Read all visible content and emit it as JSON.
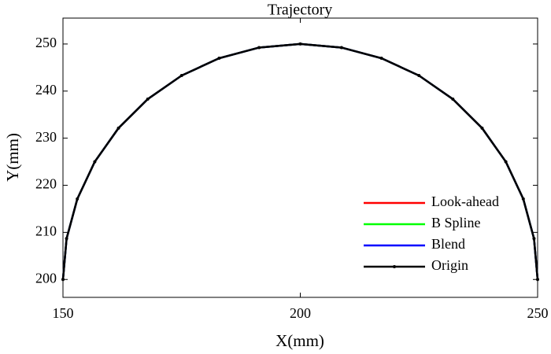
{
  "chart_data": {
    "type": "line",
    "title": "Trajectory",
    "x_label": "X(mm)",
    "y_label": "Y(mm)",
    "x": [
      150,
      150.76,
      153.02,
      156.7,
      161.7,
      167.86,
      175,
      182.9,
      191.32,
      200,
      208.68,
      217.1,
      225,
      232.14,
      238.3,
      243.3,
      246.98,
      249.24,
      250
    ],
    "series": [
      {
        "name": "Look-ahead",
        "color": "#ff0000",
        "values": [
          200,
          208.68,
          217.1,
          225,
          232.14,
          238.3,
          243.3,
          246.98,
          249.24,
          250,
          249.24,
          246.98,
          243.3,
          238.3,
          232.14,
          225,
          217.1,
          208.68,
          200
        ]
      },
      {
        "name": "B Spline",
        "color": "#00ff00",
        "values": [
          200,
          208.68,
          217.1,
          225,
          232.14,
          238.3,
          243.3,
          246.98,
          249.24,
          250,
          249.24,
          246.98,
          243.3,
          238.3,
          232.14,
          225,
          217.1,
          208.68,
          200
        ]
      },
      {
        "name": "Blend",
        "color": "#0000ff",
        "values": [
          200,
          208.68,
          217.1,
          225,
          232.14,
          238.3,
          243.3,
          246.98,
          249.24,
          250,
          249.24,
          246.98,
          243.3,
          238.3,
          232.14,
          225,
          217.1,
          208.68,
          200
        ]
      },
      {
        "name": "Origin",
        "color": "#000000",
        "marker": true,
        "values": [
          200,
          208.68,
          217.1,
          225,
          232.14,
          238.3,
          243.3,
          246.98,
          249.24,
          250,
          249.24,
          246.98,
          243.3,
          238.3,
          232.14,
          225,
          217.1,
          208.68,
          200
        ]
      }
    ],
    "xlim": [
      150,
      250
    ],
    "ylim": [
      196.2,
      255.5
    ],
    "xticks": [
      150,
      200,
      250
    ],
    "yticks": [
      200,
      210,
      220,
      230,
      240,
      250
    ],
    "grid": false,
    "legend": "lower right"
  }
}
